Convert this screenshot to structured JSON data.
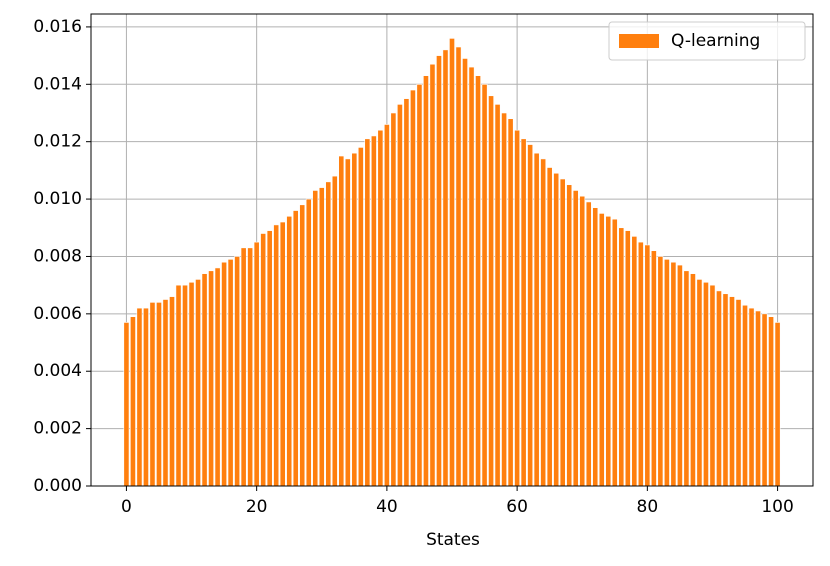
{
  "chart_data": {
    "type": "bar",
    "x_label": "States",
    "x": [
      0,
      1,
      2,
      3,
      4,
      5,
      6,
      7,
      8,
      9,
      10,
      11,
      12,
      13,
      14,
      15,
      16,
      17,
      18,
      19,
      20,
      21,
      22,
      23,
      24,
      25,
      26,
      27,
      28,
      29,
      30,
      31,
      32,
      33,
      34,
      35,
      36,
      37,
      38,
      39,
      40,
      41,
      42,
      43,
      44,
      45,
      46,
      47,
      48,
      49,
      50,
      51,
      52,
      53,
      54,
      55,
      56,
      57,
      58,
      59,
      60,
      61,
      62,
      63,
      64,
      65,
      66,
      67,
      68,
      69,
      70,
      71,
      72,
      73,
      74,
      75,
      76,
      77,
      78,
      79,
      80,
      81,
      82,
      83,
      84,
      85,
      86,
      87,
      88,
      89,
      90,
      91,
      92,
      93,
      94,
      95,
      96,
      97,
      98,
      99,
      100
    ],
    "series": [
      {
        "name": "Q-learning",
        "color": "#ff7f0e",
        "values": [
          0.0057,
          0.0059,
          0.0062,
          0.0062,
          0.0064,
          0.0064,
          0.0065,
          0.0066,
          0.007,
          0.007,
          0.0071,
          0.0072,
          0.0074,
          0.0075,
          0.0076,
          0.0078,
          0.0079,
          0.008,
          0.0083,
          0.0083,
          0.0085,
          0.0088,
          0.0089,
          0.0091,
          0.0092,
          0.0094,
          0.0096,
          0.0098,
          0.01,
          0.0103,
          0.0104,
          0.0106,
          0.0108,
          0.0115,
          0.0114,
          0.0116,
          0.0118,
          0.0121,
          0.0122,
          0.0124,
          0.0126,
          0.013,
          0.0133,
          0.0135,
          0.0138,
          0.014,
          0.0143,
          0.0147,
          0.015,
          0.0152,
          0.0156,
          0.0153,
          0.0149,
          0.0146,
          0.0143,
          0.014,
          0.0136,
          0.0133,
          0.013,
          0.0128,
          0.0124,
          0.0121,
          0.0119,
          0.0116,
          0.0114,
          0.0111,
          0.0109,
          0.0107,
          0.0105,
          0.0103,
          0.0101,
          0.0099,
          0.0097,
          0.0095,
          0.0094,
          0.0093,
          0.009,
          0.0089,
          0.0087,
          0.0085,
          0.0084,
          0.0082,
          0.008,
          0.0079,
          0.0078,
          0.0077,
          0.0075,
          0.0074,
          0.0072,
          0.0071,
          0.007,
          0.0068,
          0.0067,
          0.0066,
          0.0065,
          0.0063,
          0.0062,
          0.0061,
          0.006,
          0.0059,
          0.0057
        ]
      }
    ],
    "xlim": [
      -5.44,
      105.44
    ],
    "xticks": [
      0,
      20,
      40,
      60,
      80,
      100
    ],
    "ylim": [
      0,
      0.01645
    ],
    "yticks": [
      {
        "value": 0,
        "label": "0.000"
      },
      {
        "value": 0.002,
        "label": "0.002"
      },
      {
        "value": 0.004,
        "label": "0.004"
      },
      {
        "value": 0.006,
        "label": "0.006"
      },
      {
        "value": 0.008,
        "label": "0.008"
      },
      {
        "value": 0.01,
        "label": "0.010"
      },
      {
        "value": 0.012,
        "label": "0.012"
      },
      {
        "value": 0.014,
        "label": "0.014"
      },
      {
        "value": 0.016,
        "label": "0.016"
      }
    ],
    "grid": true,
    "legend": "upper right"
  }
}
